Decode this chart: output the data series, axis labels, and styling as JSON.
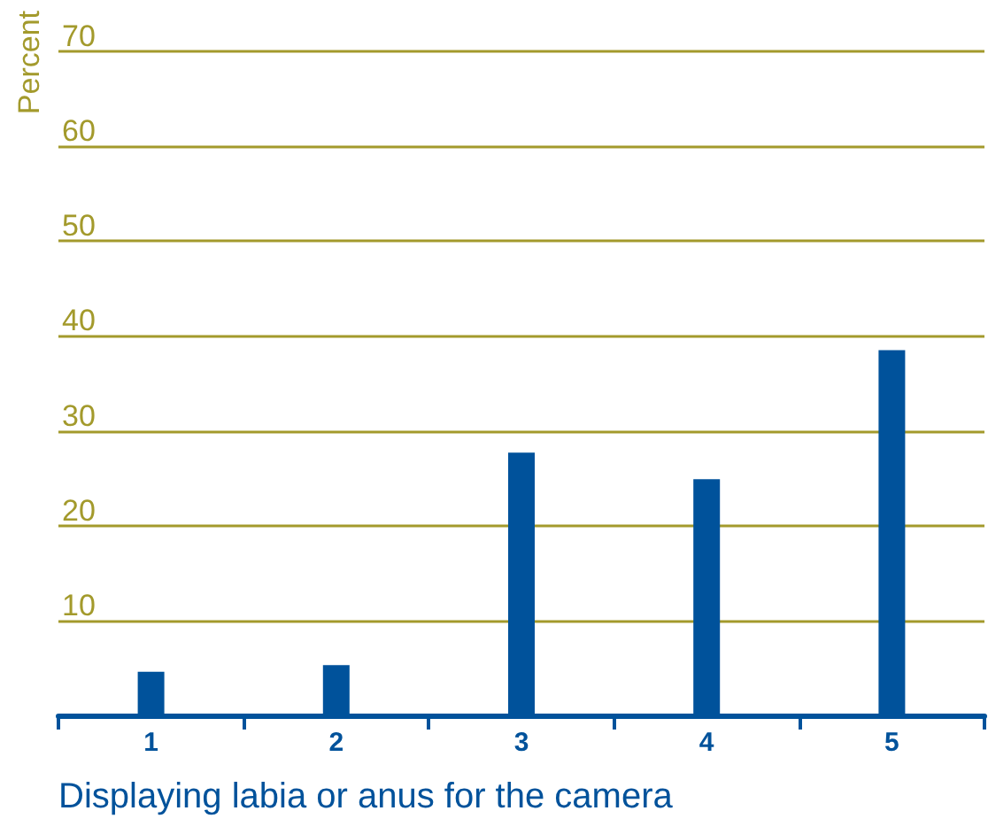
{
  "chart_data": {
    "type": "bar",
    "xlabel": "Displaying labia or anus for the camera",
    "ylabel": "Percent",
    "categories": [
      "1",
      "2",
      "3",
      "4",
      "5"
    ],
    "values": [
      4.6,
      5.3,
      27.7,
      24.9,
      38.5
    ],
    "color": "#00529b",
    "ylim": [
      0,
      70
    ],
    "yticks": [
      10,
      20,
      30,
      40,
      50,
      60,
      70
    ],
    "grid": "y"
  }
}
